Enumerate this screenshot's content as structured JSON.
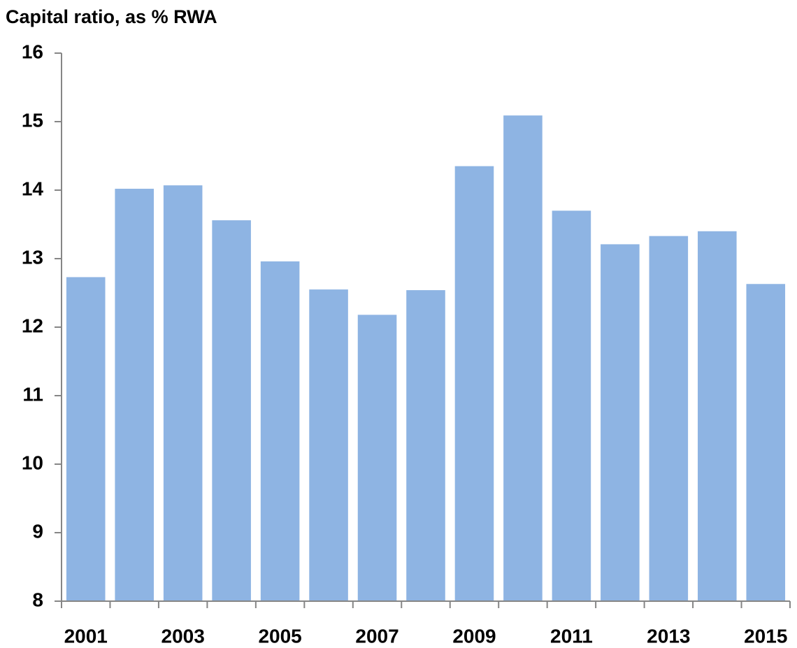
{
  "chart_data": {
    "type": "bar",
    "title": "Capital ratio, as % RWA",
    "categories": [
      "2001",
      null,
      "2003",
      null,
      "2005",
      null,
      "2007",
      null,
      "2009",
      null,
      "2011",
      null,
      "2013",
      null,
      "2015"
    ],
    "values": [
      12.73,
      14.02,
      14.07,
      13.56,
      12.96,
      12.55,
      12.18,
      12.54,
      14.35,
      15.09,
      13.7,
      13.21,
      13.33,
      13.4,
      12.63
    ],
    "color": "#8eb4e3",
    "ylim": [
      8,
      16
    ],
    "yticks": [
      8,
      9,
      10,
      11,
      12,
      13,
      14,
      15,
      16
    ],
    "grid": false
  }
}
